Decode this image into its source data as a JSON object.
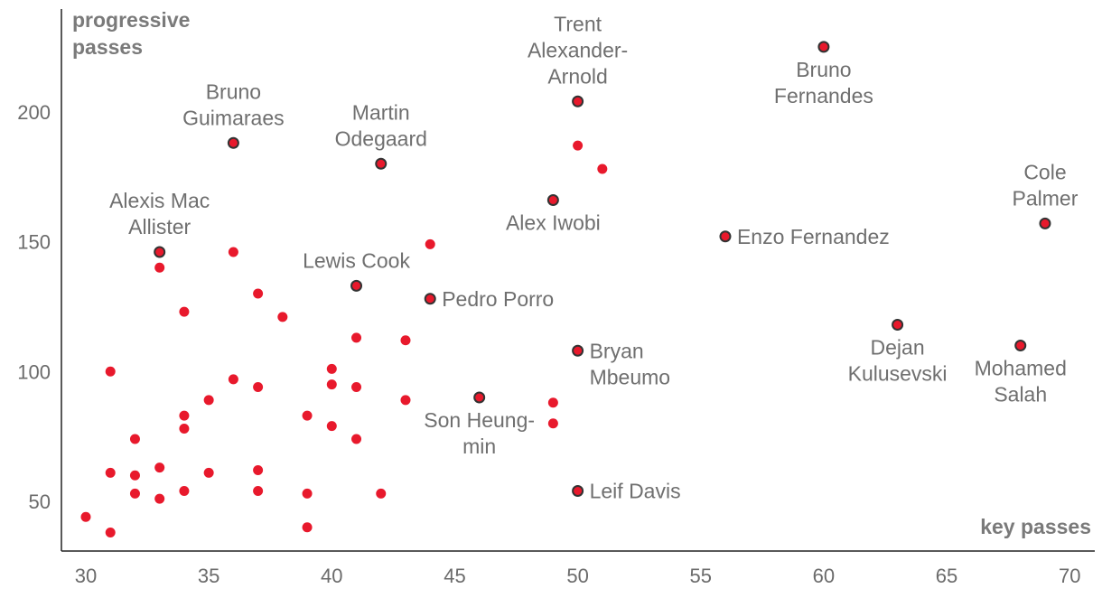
{
  "chart_data": {
    "type": "scatter",
    "xlabel": "key passes",
    "ylabel": [
      "progressive",
      "passes"
    ],
    "xlim": [
      29,
      71
    ],
    "ylim": [
      30,
      230
    ],
    "x_ticks": [
      30,
      35,
      40,
      45,
      50,
      55,
      60,
      65,
      70
    ],
    "y_ticks": [
      50,
      100,
      150,
      200
    ],
    "grid": false,
    "colors": {
      "point": "#e8192c",
      "highlight_stroke": "#333333",
      "label": "#6f6f6f",
      "axis": "#222222"
    },
    "labeled_points": [
      {
        "x": 60,
        "y": 225,
        "label": [
          "Bruno",
          "Fernandes"
        ],
        "anchor": "middle",
        "pos": "below"
      },
      {
        "x": 50,
        "y": 204,
        "label": [
          "Trent",
          "Alexander-",
          "Arnold"
        ],
        "anchor": "middle",
        "pos": "above"
      },
      {
        "x": 36,
        "y": 188,
        "label": [
          "Bruno",
          "Guimaraes"
        ],
        "anchor": "middle",
        "pos": "above"
      },
      {
        "x": 42,
        "y": 180,
        "label": [
          "Martin",
          "Odegaard"
        ],
        "anchor": "middle",
        "pos": "above"
      },
      {
        "x": 49,
        "y": 166,
        "label": [
          "Alex Iwobi"
        ],
        "anchor": "middle",
        "pos": "below"
      },
      {
        "x": 69,
        "y": 157,
        "label": [
          "Cole",
          "Palmer"
        ],
        "anchor": "middle",
        "pos": "above"
      },
      {
        "x": 56,
        "y": 152,
        "label": [
          "Enzo Fernandez"
        ],
        "anchor": "start",
        "pos": "right"
      },
      {
        "x": 33,
        "y": 146,
        "label": [
          "Alexis Mac",
          "Allister"
        ],
        "anchor": "middle",
        "pos": "above"
      },
      {
        "x": 41,
        "y": 133,
        "label": [
          "Lewis Cook"
        ],
        "anchor": "middle",
        "pos": "above"
      },
      {
        "x": 44,
        "y": 128,
        "label": [
          "Pedro Porro"
        ],
        "anchor": "start",
        "pos": "right"
      },
      {
        "x": 63,
        "y": 118,
        "label": [
          "Dejan",
          "Kulusevski"
        ],
        "anchor": "middle",
        "pos": "below"
      },
      {
        "x": 68,
        "y": 110,
        "label": [
          "Mohamed",
          "Salah"
        ],
        "anchor": "middle",
        "pos": "below"
      },
      {
        "x": 50,
        "y": 108,
        "label": [
          "Bryan",
          "Mbeumo"
        ],
        "anchor": "start",
        "pos": "right"
      },
      {
        "x": 46,
        "y": 90,
        "label": [
          "Son Heung-",
          "min"
        ],
        "anchor": "middle",
        "pos": "below"
      },
      {
        "x": 50,
        "y": 54,
        "label": [
          "Leif Davis"
        ],
        "anchor": "start",
        "pos": "right"
      }
    ],
    "points": [
      [
        30,
        44
      ],
      [
        31,
        38
      ],
      [
        31,
        61
      ],
      [
        31,
        100
      ],
      [
        32,
        53
      ],
      [
        32,
        60
      ],
      [
        32,
        74
      ],
      [
        33,
        51
      ],
      [
        33,
        63
      ],
      [
        33,
        140
      ],
      [
        34,
        54
      ],
      [
        34,
        78
      ],
      [
        34,
        83
      ],
      [
        34,
        123
      ],
      [
        35,
        61
      ],
      [
        35,
        89
      ],
      [
        36,
        97
      ],
      [
        36,
        146
      ],
      [
        37,
        54
      ],
      [
        37,
        62
      ],
      [
        37,
        94
      ],
      [
        37,
        130
      ],
      [
        38,
        121
      ],
      [
        39,
        40
      ],
      [
        39,
        53
      ],
      [
        39,
        83
      ],
      [
        40,
        79
      ],
      [
        40,
        95
      ],
      [
        40,
        101
      ],
      [
        41,
        74
      ],
      [
        41,
        94
      ],
      [
        41,
        113
      ],
      [
        42,
        53
      ],
      [
        43,
        89
      ],
      [
        43,
        112
      ],
      [
        44,
        149
      ],
      [
        49,
        80
      ],
      [
        49,
        88
      ],
      [
        50,
        187
      ],
      [
        51,
        178
      ]
    ]
  }
}
